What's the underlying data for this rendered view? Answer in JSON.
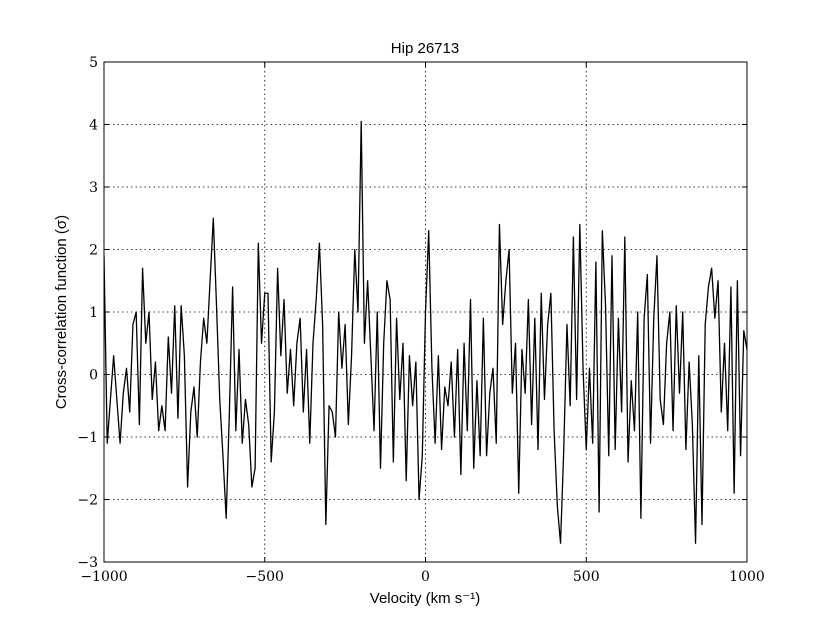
{
  "chart_data": {
    "type": "line",
    "title": "Hip 26713",
    "xlabel": "Velocity (km s⁻¹)",
    "ylabel": "Cross-correlation function (σ)",
    "x": [
      -1000,
      -990,
      -980,
      -970,
      -960,
      -950,
      -940,
      -930,
      -920,
      -910,
      -900,
      -890,
      -880,
      -870,
      -860,
      -850,
      -840,
      -830,
      -820,
      -810,
      -800,
      -790,
      -780,
      -770,
      -760,
      -750,
      -740,
      -730,
      -720,
      -710,
      -700,
      -690,
      -680,
      -670,
      -660,
      -650,
      -640,
      -630,
      -620,
      -610,
      -600,
      -590,
      -580,
      -570,
      -560,
      -550,
      -540,
      -530,
      -520,
      -510,
      -500,
      -490,
      -480,
      -470,
      -460,
      -450,
      -440,
      -430,
      -420,
      -410,
      -400,
      -390,
      -380,
      -370,
      -360,
      -350,
      -340,
      -330,
      -320,
      -310,
      -300,
      -290,
      -280,
      -270,
      -260,
      -250,
      -240,
      -230,
      -220,
      -210,
      -200,
      -190,
      -180,
      -170,
      -160,
      -150,
      -140,
      -130,
      -120,
      -110,
      -100,
      -90,
      -80,
      -70,
      -60,
      -50,
      -40,
      -30,
      -20,
      -10,
      0,
      10,
      20,
      30,
      40,
      50,
      60,
      70,
      80,
      90,
      100,
      110,
      120,
      130,
      140,
      150,
      160,
      170,
      180,
      190,
      200,
      210,
      220,
      230,
      240,
      250,
      260,
      270,
      280,
      290,
      300,
      310,
      320,
      330,
      340,
      350,
      360,
      370,
      380,
      390,
      400,
      410,
      420,
      430,
      440,
      450,
      460,
      470,
      480,
      490,
      500,
      510,
      520,
      530,
      540,
      550,
      560,
      570,
      580,
      590,
      600,
      610,
      620,
      630,
      640,
      650,
      660,
      670,
      680,
      690,
      700,
      710,
      720,
      730,
      740,
      750,
      760,
      770,
      780,
      790,
      800,
      810,
      820,
      830,
      840,
      850,
      860,
      870,
      880,
      890,
      900,
      910,
      920,
      930,
      940,
      950,
      960,
      970,
      980,
      990,
      1000
    ],
    "series": [
      {
        "color": "#000000",
        "values": [
          1.9,
          -1.1,
          -0.4,
          0.3,
          -0.4,
          -1.1,
          -0.3,
          0.1,
          -0.6,
          0.8,
          1.0,
          -0.8,
          1.7,
          0.5,
          1.0,
          -0.4,
          0.2,
          -0.9,
          -0.5,
          -0.9,
          0.6,
          -0.3,
          1.1,
          -0.7,
          1.1,
          0.3,
          -1.8,
          -0.6,
          -0.2,
          -1.0,
          0.2,
          0.9,
          0.5,
          1.5,
          2.5,
          1.1,
          -0.4,
          -1.3,
          -2.3,
          -0.6,
          1.4,
          -0.9,
          0.4,
          -1.1,
          -0.4,
          -0.8,
          -1.8,
          -1.5,
          2.1,
          0.5,
          1.3,
          1.3,
          -1.4,
          -0.6,
          1.7,
          0.3,
          1.2,
          -0.3,
          0.4,
          -0.5,
          0.5,
          0.9,
          -0.6,
          0.4,
          -1.1,
          0.5,
          1.2,
          2.1,
          0.8,
          -2.4,
          -0.5,
          -0.6,
          -1.0,
          1.0,
          0.1,
          0.8,
          -0.8,
          0.3,
          2.0,
          1.0,
          4.05,
          0.5,
          1.5,
          0.3,
          -0.9,
          1.0,
          -1.5,
          0.5,
          1.5,
          1.2,
          -1.4,
          0.9,
          -0.4,
          0.5,
          -1.7,
          0.3,
          -0.5,
          0.2,
          -2.0,
          -1.3,
          1.0,
          2.3,
          0.1,
          -1.1,
          0.3,
          -1.2,
          -0.2,
          -0.5,
          0.2,
          -1.0,
          0.4,
          -1.6,
          0.5,
          -0.9,
          1.2,
          -1.5,
          -0.1,
          -1.3,
          0.9,
          -1.3,
          -0.3,
          0.1,
          -1.1,
          2.4,
          0.8,
          1.5,
          2.0,
          -0.3,
          0.5,
          -1.9,
          0.4,
          -0.3,
          1.2,
          -0.8,
          0.9,
          -1.2,
          1.3,
          -0.4,
          0.8,
          1.3,
          -0.9,
          -2.1,
          -2.7,
          -1.2,
          0.8,
          -0.5,
          2.2,
          -0.4,
          2.4,
          0.1,
          -1.2,
          0.1,
          -1.1,
          1.8,
          -2.2,
          2.3,
          1.1,
          -1.3,
          1.9,
          -1.2,
          0.9,
          -0.6,
          2.2,
          -1.4,
          -0.1,
          -0.9,
          1.0,
          -2.3,
          0.9,
          1.6,
          -1.1,
          0.9,
          1.9,
          -0.4,
          -0.8,
          0.5,
          1.0,
          -0.9,
          1.1,
          -0.3,
          1.0,
          -1.2,
          0.2,
          -0.8,
          -2.7,
          0.3,
          -2.4,
          0.8,
          1.4,
          1.7,
          0.9,
          1.5,
          -0.6,
          0.5,
          -0.9,
          1.4,
          -1.9,
          1.5,
          -1.3,
          0.7,
          0.4
        ]
      }
    ],
    "xlim": [
      -1000,
      1000
    ],
    "xticks": [
      {
        "value": -1000,
        "label": "−1000"
      },
      {
        "value": -500,
        "label": "−500"
      },
      0,
      500,
      1000
    ],
    "ylim": [
      -3,
      5
    ],
    "yticks": [
      {
        "value": -3,
        "label": "−3"
      },
      {
        "value": -2,
        "label": "−2"
      },
      {
        "value": -1,
        "label": "−1"
      },
      0,
      1,
      2,
      3,
      4,
      5
    ],
    "grid": true
  }
}
